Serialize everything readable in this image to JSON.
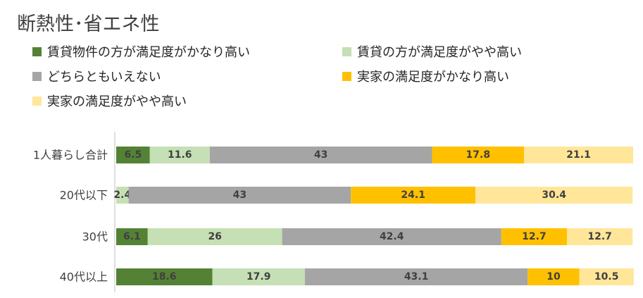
{
  "chart_data": {
    "type": "bar",
    "orientation": "horizontal",
    "stacked": true,
    "title": "断熱性･省エネ性",
    "categories": [
      "1人暮らし合計",
      "20代以下",
      "30代",
      "40代以上"
    ],
    "series": [
      {
        "name": "賃貸物件の方が満足度がかなり高い",
        "color": "#548235",
        "values": [
          6.5,
          0,
          6.1,
          18.6
        ],
        "labels": [
          "6.5",
          "",
          "6.1",
          "18.6"
        ]
      },
      {
        "name": "賃貸の方が満足度がやや高い",
        "color": "#c5e0b4",
        "values": [
          11.6,
          2.4,
          26,
          17.9
        ],
        "labels": [
          "11.6",
          "2.4",
          "26",
          "17.9"
        ]
      },
      {
        "name": "どちらともいえない",
        "color": "#a5a5a5",
        "values": [
          43,
          43,
          42.4,
          43.1
        ],
        "labels": [
          "43",
          "43",
          "42.4",
          "43.1"
        ]
      },
      {
        "name": "実家の満足度がかなり高い",
        "color": "#ffc000",
        "values": [
          17.8,
          24.1,
          12.7,
          10
        ],
        "labels": [
          "17.8",
          "24.1",
          "12.7",
          "10"
        ]
      },
      {
        "name": "実家の満足度がやや高い",
        "color": "#ffe699",
        "values": [
          21.1,
          30.4,
          12.7,
          10.5
        ],
        "labels": [
          "21.1",
          "30.4",
          "12.7",
          "10.5"
        ]
      }
    ],
    "xlim": [
      0,
      100
    ],
    "legend_position": "top",
    "grid": false
  }
}
